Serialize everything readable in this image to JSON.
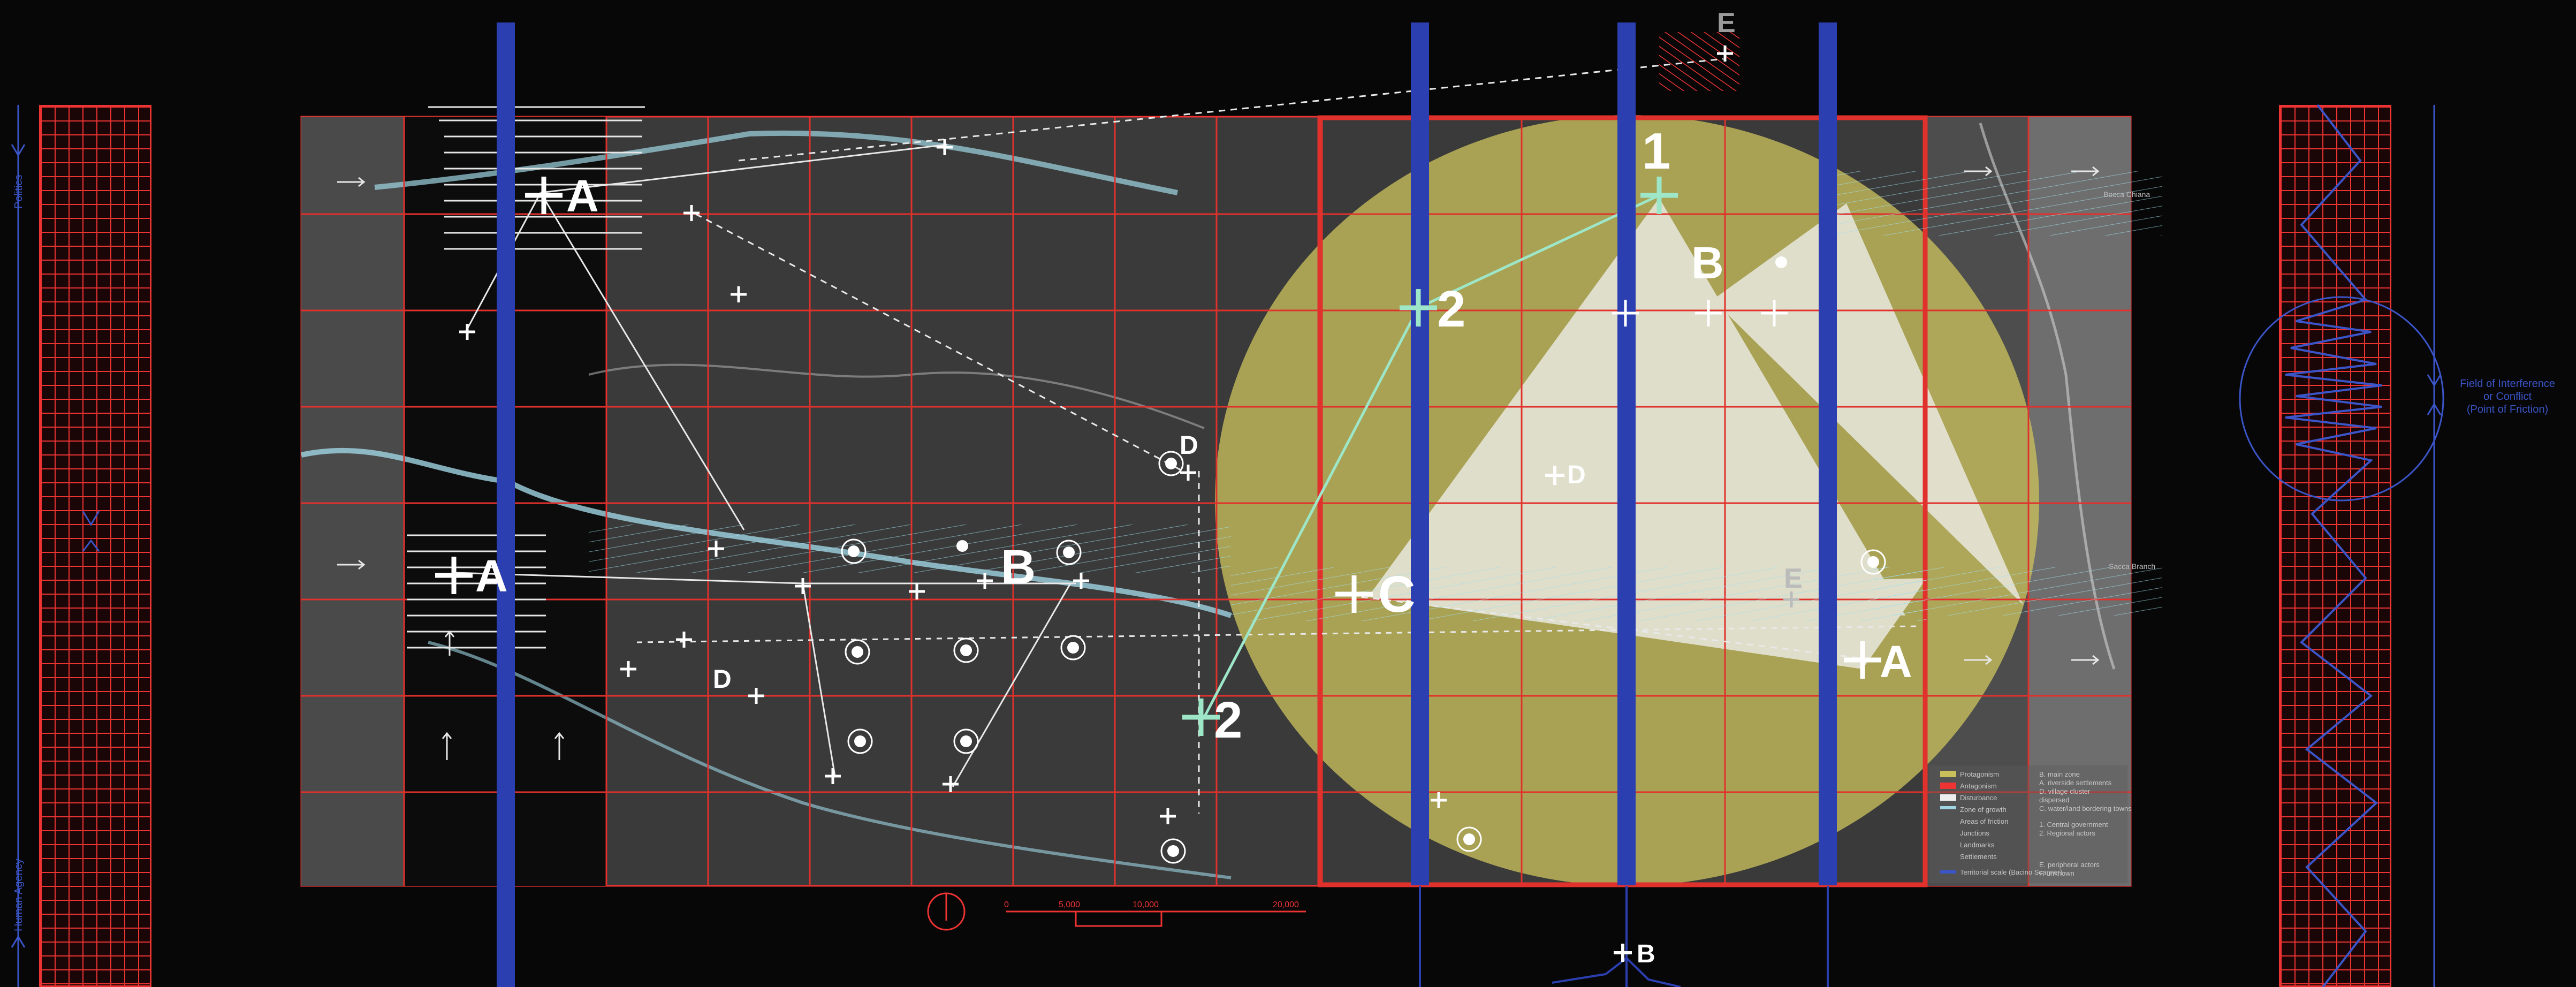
{
  "left_axis": {
    "top_label": "Politics",
    "bottom_label": "Human Agency"
  },
  "right_axis": {
    "annotation": "Field of Interference\nor Conflict\n(Point of Friction)"
  },
  "map": {
    "points": [
      {
        "label": "A",
        "role": "place"
      },
      {
        "label": "A",
        "role": "place"
      },
      {
        "label": "B",
        "role": "place"
      },
      {
        "label": "D",
        "role": "place"
      },
      {
        "label": "D",
        "role": "place"
      },
      {
        "label": "D",
        "role": "place"
      },
      {
        "label": "C",
        "role": "place"
      },
      {
        "label": "2",
        "role": "place"
      },
      {
        "label": "2",
        "role": "place"
      },
      {
        "label": "1",
        "role": "place"
      },
      {
        "label": "B",
        "role": "place"
      },
      {
        "label": "E",
        "role": "place"
      },
      {
        "label": "A",
        "role": "place"
      }
    ],
    "top_marker": "E",
    "bottom_marker": "B",
    "small_place_labels": [
      "Bocca Chiana",
      "Sacca Branch"
    ]
  },
  "scale_bar": {
    "ticks": [
      "0",
      "5,000",
      "10,000",
      "20,000"
    ]
  },
  "legend": {
    "left_items": [
      "Protagonism",
      "Antagonism",
      "Disturbance",
      "Zone of growth",
      "Areas of friction",
      "Junctions",
      "Landmarks",
      "Settlements",
      "Territorial scale (Bacino Scanner)"
    ],
    "right_items": [
      "B. main zone",
      "A. riverside settlements",
      "D. village cluster",
      "dispersed",
      "C. water/land bordering towns",
      "1. Central government",
      "2. Regional actors",
      "E. peripheral actors",
      "F. unknown"
    ]
  },
  "colors": {
    "grid_red": "#e0312c",
    "pillar_blue": "#2c3fb0",
    "ellipse_yellow": "#c9c05c",
    "cyan": "#7fd6e6",
    "axis_blue": "#3b55c9"
  }
}
